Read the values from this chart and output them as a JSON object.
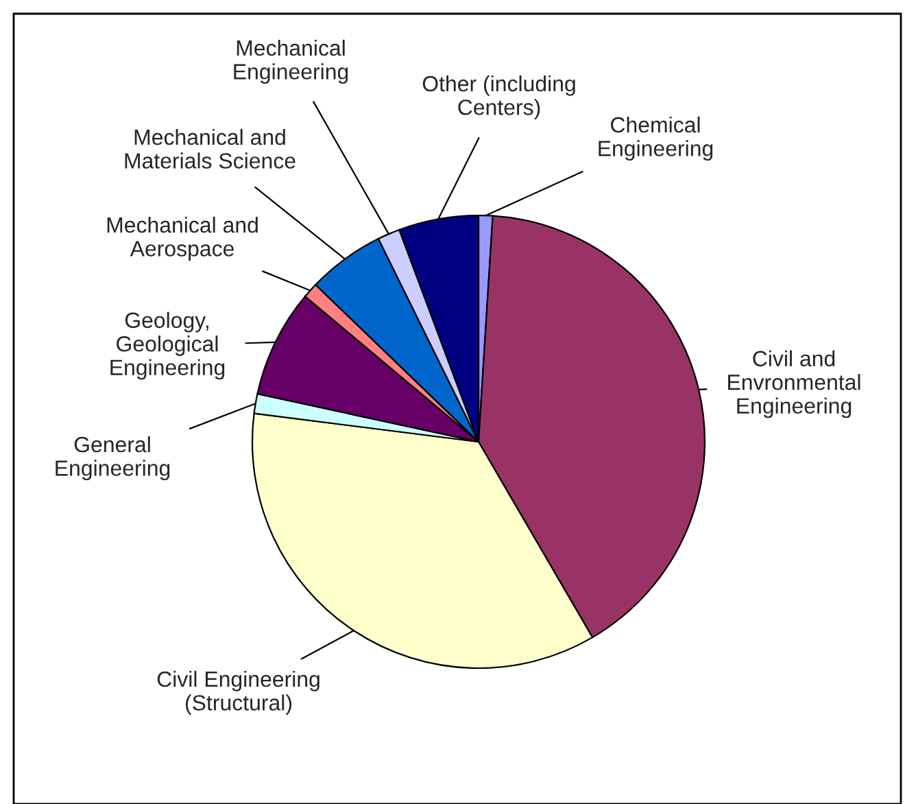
{
  "chart_data": {
    "type": "pie",
    "categories": [
      "Chemical\nEngineering",
      "Civil and\nEnvronmental\nEngineering",
      "Civil Engineering\n(Structural)",
      "General\nEngineering",
      "Geology,\nGeological\nEngineering",
      "Mechanical and\nAerospace",
      "Mechanical and\nMaterials Science",
      "Mechanical\nEngineering",
      "Other (including\nCenters)"
    ],
    "values": [
      1.0,
      40.6,
      35.4,
      1.4,
      7.7,
      1.1,
      5.5,
      1.6,
      5.7
    ],
    "colors": [
      "#9999ff",
      "#993366",
      "#ffffcc",
      "#ccffff",
      "#660066",
      "#ff8080",
      "#0066cc",
      "#ccccff",
      "#000080"
    ]
  }
}
